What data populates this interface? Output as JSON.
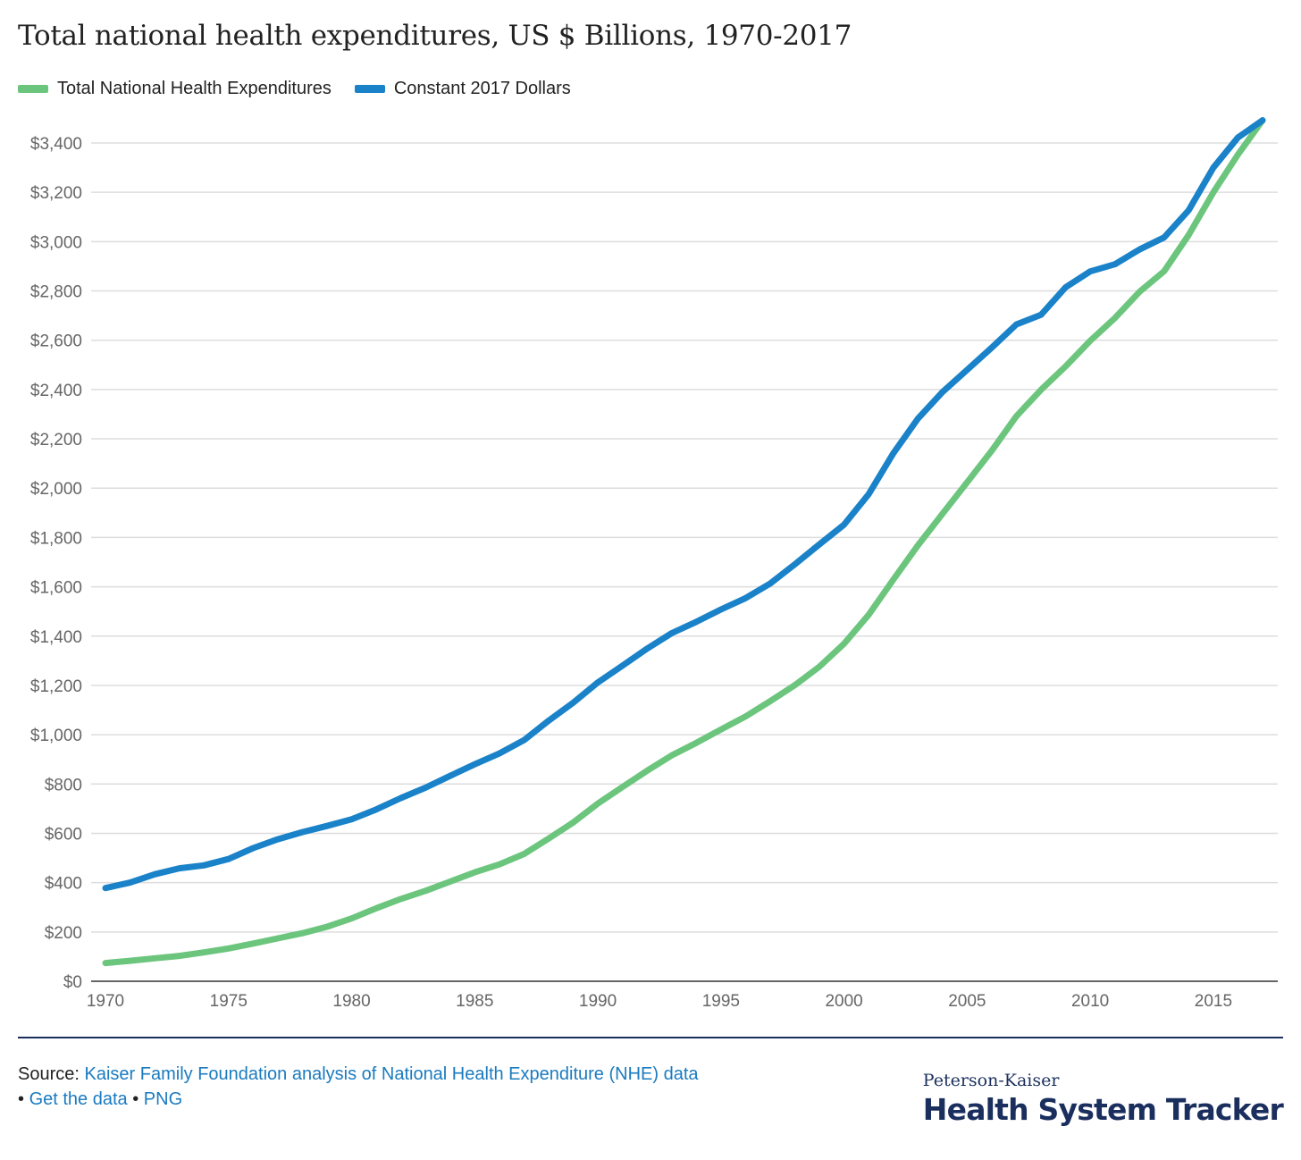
{
  "colors": {
    "series_green": "#6cc57d",
    "series_blue": "#1a82c8",
    "grid": "#dddddd",
    "axis_text": "#666666",
    "brand_navy": "#1b2f5e",
    "link": "#1a7bc0"
  },
  "chart_data": {
    "type": "line",
    "title": "Total national health expenditures, US $ Billions, 1970-2017",
    "xlabel": "",
    "ylabel": "",
    "ylim": [
      0,
      3400
    ],
    "yticks": [
      0,
      200,
      400,
      600,
      800,
      1000,
      1200,
      1400,
      1600,
      1800,
      2000,
      2200,
      2400,
      2600,
      2800,
      3000,
      3200,
      3400
    ],
    "ytick_labels": [
      "$0",
      "$200",
      "$400",
      "$600",
      "$800",
      "$1,000",
      "$1,200",
      "$1,400",
      "$1,600",
      "$1,800",
      "$2,000",
      "$2,200",
      "$2,400",
      "$2,600",
      "$2,800",
      "$3,000",
      "$3,200",
      "$3,400"
    ],
    "xlim": [
      1970,
      2017
    ],
    "xticks": [
      1970,
      1975,
      1980,
      1985,
      1990,
      1995,
      2000,
      2005,
      2010,
      2015
    ],
    "grid": true,
    "legend_position": "top-left",
    "x": [
      1970,
      1971,
      1972,
      1973,
      1974,
      1975,
      1976,
      1977,
      1978,
      1979,
      1980,
      1981,
      1982,
      1983,
      1984,
      1985,
      1986,
      1987,
      1988,
      1989,
      1990,
      1991,
      1992,
      1993,
      1994,
      1995,
      1996,
      1997,
      1998,
      1999,
      2000,
      2001,
      2002,
      2003,
      2004,
      2005,
      2006,
      2007,
      2008,
      2009,
      2010,
      2011,
      2012,
      2013,
      2014,
      2015,
      2016,
      2017
    ],
    "series": [
      {
        "name": "Total National Health Expenditures",
        "color_key": "series_green",
        "values": [
          74,
          83,
          93,
          103,
          117,
          133,
          153,
          174,
          195,
          221,
          255,
          296,
          334,
          367,
          404,
          442,
          474,
          516,
          579,
          644,
          721,
          788,
          854,
          916,
          967,
          1021,
          1074,
          1136,
          1201,
          1276,
          1369,
          1486,
          1629,
          1768,
          1896,
          2024,
          2152,
          2292,
          2399,
          2494,
          2598,
          2690,
          2796,
          2880,
          3027,
          3200,
          3353,
          3492
        ]
      },
      {
        "name": "Constant 2017 Dollars",
        "color_key": "series_blue",
        "values": [
          378,
          400,
          434,
          458,
          470,
          496,
          540,
          576,
          605,
          630,
          657,
          697,
          743,
          785,
          833,
          880,
          924,
          978,
          1057,
          1130,
          1212,
          1280,
          1349,
          1412,
          1458,
          1508,
          1554,
          1613,
          1691,
          1772,
          1852,
          1975,
          2141,
          2282,
          2390,
          2480,
          2570,
          2664,
          2703,
          2815,
          2879,
          2908,
          2968,
          3017,
          3127,
          3300,
          3422,
          3492
        ]
      }
    ]
  },
  "footer": {
    "source_label": "Source:",
    "source_link": "Kaiser Family Foundation analysis of National Health Expenditure (NHE) data",
    "bullet": "•",
    "get_data": "Get the data",
    "png": "PNG"
  },
  "brand": {
    "top": "Peterson-Kaiser",
    "main": "Health System Tracker"
  }
}
